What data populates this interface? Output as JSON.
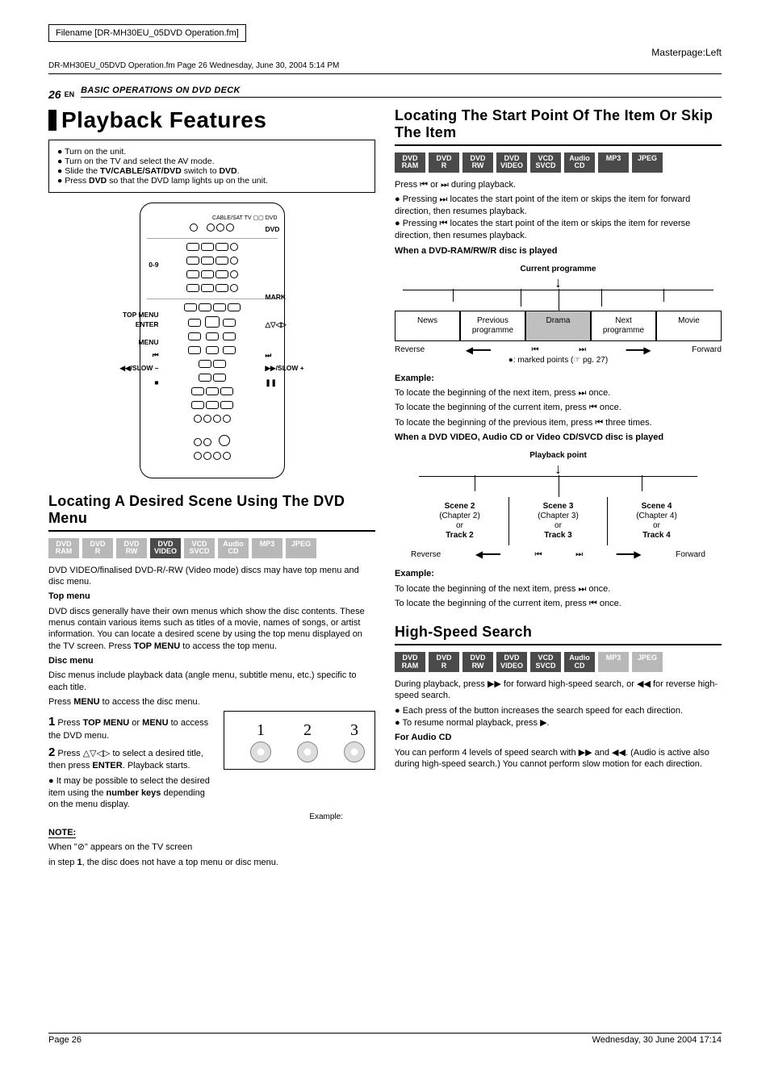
{
  "meta": {
    "filename_label": "Filename [DR-MH30EU_05DVD Operation.fm]",
    "masterpage": "Masterpage:Left",
    "framemaker_line": "DR-MH30EU_05DVD Operation.fm  Page 26  Wednesday, June 30, 2004  5:14 PM",
    "page_number": "26",
    "en": "EN",
    "section": "BASIC OPERATIONS ON DVD DECK",
    "footer_left": "Page 26",
    "footer_right": "Wednesday, 30 June 2004  17:14"
  },
  "left": {
    "title": "Playback Features",
    "setup": [
      "Turn on the unit.",
      "Turn on the TV and select the AV mode.",
      "Slide the TV/CABLE/SAT/DVD switch to DVD.",
      "Press DVD so that the DVD lamp lights up on the unit."
    ],
    "remote_labels": {
      "tv_switch": "CABLE/SAT  TV ▢▢ DVD",
      "dvd": "DVD",
      "zero_nine": "0-9",
      "mark": "MARK",
      "top_menu": "TOP MENU",
      "enter": "ENTER",
      "nav": "△▽◁▷",
      "menu": "MENU",
      "prev": "⏮",
      "next": "⏭",
      "rew_slow": "◀◀/SLOW –",
      "ff_slow": "▶▶/SLOW +",
      "stop": "■",
      "pause": "❚❚",
      "play": "▶"
    },
    "menu_heading": "Locating A Desired Scene Using The DVD Menu",
    "badges": [
      "DVD RAM",
      "DVD R",
      "DVD RW",
      "DVD VIDEO",
      "VCD SVCD",
      "Audio CD",
      "MP3",
      "JPEG"
    ],
    "badge_active": [
      false,
      false,
      false,
      true,
      false,
      false,
      false,
      false
    ],
    "menu_intro": "DVD VIDEO/finalised DVD-R/-RW (Video mode) discs may have top menu and disc menu.",
    "top_menu_h": "Top menu",
    "top_menu_p": "DVD discs generally have their own menus which show the disc contents. These menus contain various items such as titles of a movie, names of songs, or artist information. You can locate a desired scene by using the top menu displayed on the TV screen. Press TOP MENU to access the top menu.",
    "disc_menu_h": "Disc menu",
    "disc_menu_p1": "Disc menus include playback data (angle menu, subtitle menu, etc.) specific to each title.",
    "disc_menu_p2": "Press MENU to access the disc menu.",
    "step1_num": "1",
    "step1": "Press TOP MENU or MENU to access the DVD menu.",
    "step2_num": "2",
    "step2": "Press △▽◁▷ to select a desired title, then press ENTER. Playback starts.",
    "step2_bul": "It may be possible to select the desired item using the number keys depending on the menu display.",
    "example_label": "Example:",
    "note_h": "NOTE:",
    "note_p1": "When \"⊘\" appears on the TV screen",
    "note_p2": "in step 1, the disc does not have a top menu or disc menu."
  },
  "right": {
    "skip_heading": "Locating The Start Point Of The Item Or Skip The Item",
    "badges": [
      "DVD RAM",
      "DVD R",
      "DVD RW",
      "DVD VIDEO",
      "VCD SVCD",
      "Audio CD",
      "MP3",
      "JPEG"
    ],
    "badge_active": [
      true,
      true,
      true,
      true,
      true,
      true,
      true,
      true
    ],
    "skip_intro": "Press ⏮ or ⏭ during playback.",
    "skip_b1": "Pressing ⏭ locates the start point of the item or skips the item for forward direction, then resumes playback.",
    "skip_b2": "Pressing ⏮ locates the start point of the item or skips the item for reverse direction, then resumes playback.",
    "ram_h": "When a DVD-RAM/RW/R disc is played",
    "tl1_label": "Current programme",
    "tl1_cells": [
      "News",
      "Previous programme",
      "Drama",
      "Next programme",
      "Movie"
    ],
    "tl1_hi_index": 2,
    "reverse": "Reverse",
    "forward": "Forward",
    "marked_note": "●: marked points (☞ pg. 27)",
    "ex_h": "Example:",
    "ex1_l1": "To locate the beginning of the next item, press ⏭ once.",
    "ex1_l2": "To locate the beginning of the current item, press ⏮ once.",
    "ex1_l3": "To locate the beginning of the previous item, press ⏮ three times.",
    "video_h": "When a DVD VIDEO, Audio CD or Video CD/SVCD disc is played",
    "tl2_label": "Playback point",
    "tl2_cells": [
      {
        "l1": "Scene 2",
        "l2": "(Chapter 2)",
        "l3": "or",
        "l4": "Track 2"
      },
      {
        "l1": "Scene 3",
        "l2": "(Chapter 3)",
        "l3": "or",
        "l4": "Track 3"
      },
      {
        "l1": "Scene 4",
        "l2": "(Chapter 4)",
        "l3": "or",
        "l4": "Track 4"
      }
    ],
    "ex2_l1": "To locate the beginning of the next item, press ⏭ once.",
    "ex2_l2": "To locate the beginning of the current item, press ⏮ once.",
    "hs_heading": "High-Speed Search",
    "hs_badges": [
      "DVD RAM",
      "DVD R",
      "DVD RW",
      "DVD VIDEO",
      "VCD SVCD",
      "Audio CD",
      "MP3",
      "JPEG"
    ],
    "hs_badge_active": [
      true,
      true,
      true,
      true,
      true,
      true,
      false,
      false
    ],
    "hs_intro": "During playback, press ▶▶ for forward high-speed search, or ◀◀ for reverse high-speed search.",
    "hs_b1": "Each press of the button increases the search speed for each direction.",
    "hs_b2": "To resume normal playback, press ▶.",
    "hs_audio_h": "For Audio CD",
    "hs_audio_p": "You can perform 4 levels of speed search with ▶▶ and ◀◀. (Audio is active also during high-speed search.) You cannot perform slow motion for each direction."
  },
  "colors": {
    "badge_on": "#4a4a4a",
    "badge_off": "#b8b8b8"
  }
}
